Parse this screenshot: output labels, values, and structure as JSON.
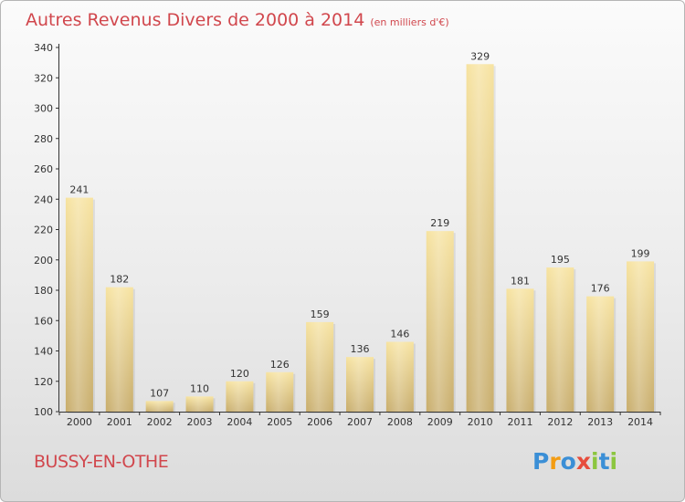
{
  "header": {
    "title": "Autres Revenus Divers de 2000 à 2014",
    "subtitle": "(en milliers d'€)"
  },
  "footer": {
    "place": "BUSSY-EN-OTHE"
  },
  "brand": {
    "letters": [
      "P",
      "r",
      "o",
      "x",
      "i",
      "t",
      "i"
    ],
    "colors": [
      "#3b8fd6",
      "#f39c12",
      "#3b8fd6",
      "#e74c3c",
      "#8cc63f",
      "#3b8fd6",
      "#8cc63f"
    ]
  },
  "colors": {
    "title": "#d1474d",
    "bar_light": "#f7e3a0",
    "bar_dark": "#c8ad6c",
    "axis": "#333333",
    "grid": "#d0d0d0"
  },
  "chart_data": {
    "type": "bar",
    "title": "Autres Revenus Divers de 2000 à 2014",
    "subtitle": "(en milliers d'€)",
    "categories": [
      "2000",
      "2001",
      "2002",
      "2003",
      "2004",
      "2005",
      "2006",
      "2007",
      "2008",
      "2009",
      "2010",
      "2011",
      "2012",
      "2013",
      "2014"
    ],
    "values": [
      241,
      182,
      107,
      110,
      120,
      126,
      159,
      136,
      146,
      219,
      329,
      181,
      195,
      176,
      199
    ],
    "ylim": [
      100,
      340
    ],
    "yticks": [
      100,
      120,
      140,
      160,
      180,
      200,
      220,
      240,
      260,
      280,
      300,
      320,
      340
    ],
    "grid": false,
    "data_labels": true
  }
}
